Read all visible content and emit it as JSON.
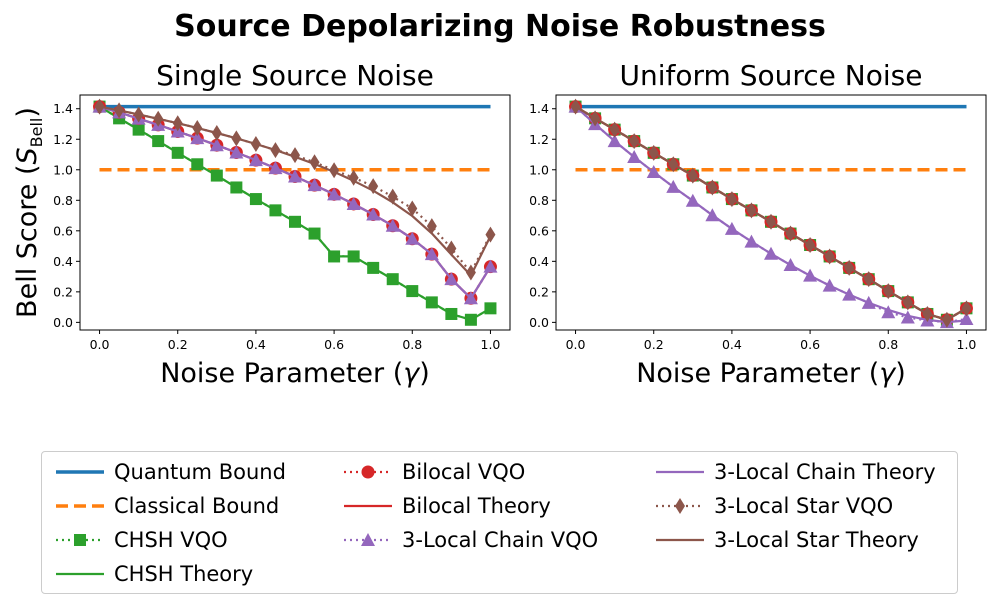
{
  "figure": {
    "suptitle": "Source Depolarizing Noise Robustness"
  },
  "colors": {
    "quantum_bound": "#1f77b4",
    "classical_bound": "#ff7f0e",
    "chsh": "#2ca02c",
    "bilocal": "#d62728",
    "chain": "#9467bd",
    "star": "#8c564b"
  },
  "legend": {
    "items": [
      {
        "key": "quantum_bound",
        "label": "Quantum Bound",
        "style": "solid-thick",
        "marker": "none"
      },
      {
        "key": "classical_bound",
        "label": "Classical Bound",
        "style": "dashed",
        "marker": "none"
      },
      {
        "key": "chsh",
        "label": "CHSH VQO",
        "style": "dotted",
        "marker": "square"
      },
      {
        "key": "chsh",
        "label": "CHSH Theory",
        "style": "solid",
        "marker": "none"
      },
      {
        "key": "bilocal",
        "label": "Bilocal VQO",
        "style": "dotted",
        "marker": "circle"
      },
      {
        "key": "bilocal",
        "label": "Bilocal Theory",
        "style": "solid",
        "marker": "none"
      },
      {
        "key": "chain",
        "label": "3-Local Chain VQO",
        "style": "dotted",
        "marker": "triangle"
      },
      {
        "key": "chain",
        "label": "3-Local Chain Theory",
        "style": "solid",
        "marker": "none"
      },
      {
        "key": "star",
        "label": "3-Local Star VQO",
        "style": "dotted",
        "marker": "diamond"
      },
      {
        "key": "star",
        "label": "3-Local Star Theory",
        "style": "solid",
        "marker": "none"
      }
    ]
  },
  "chart_data": [
    {
      "type": "line",
      "title": "Single Source Noise",
      "xlabel": "Noise Parameter ($\\gamma$)",
      "ylabel": "Bell Score ($S_{\\mathrm{Bell}}$)",
      "xlim": [
        -0.05,
        1.05
      ],
      "ylim": [
        -0.05,
        1.49
      ],
      "xticks": [
        "0.0",
        "0.2",
        "0.4",
        "0.6",
        "0.8",
        "1.0"
      ],
      "yticks": [
        "0.0",
        "0.2",
        "0.4",
        "0.6",
        "0.8",
        "1.0",
        "1.2",
        "1.4"
      ],
      "grid": false,
      "x": [
        0.0,
        0.05,
        0.1,
        0.15,
        0.2,
        0.25,
        0.3,
        0.35,
        0.4,
        0.45,
        0.5,
        0.55,
        0.6,
        0.65,
        0.7,
        0.75,
        0.8,
        0.85,
        0.9,
        0.95,
        1.0
      ],
      "series": [
        {
          "name": "Quantum Bound",
          "key": "quantum_bound",
          "style": "solid-thick",
          "marker": "none",
          "values": [
            1.414,
            1.414,
            1.414,
            1.414,
            1.414,
            1.414,
            1.414,
            1.414,
            1.414,
            1.414,
            1.414,
            1.414,
            1.414,
            1.414,
            1.414,
            1.414,
            1.414,
            1.414,
            1.414,
            1.414,
            1.414
          ]
        },
        {
          "name": "Classical Bound",
          "key": "classical_bound",
          "style": "dashed",
          "marker": "none",
          "values": [
            1.0,
            1.0,
            1.0,
            1.0,
            1.0,
            1.0,
            1.0,
            1.0,
            1.0,
            1.0,
            1.0,
            1.0,
            1.0,
            1.0,
            1.0,
            1.0,
            1.0,
            1.0,
            1.0,
            1.0,
            1.0
          ]
        },
        {
          "name": "CHSH Theory",
          "key": "chsh",
          "style": "solid",
          "marker": "none",
          "values": [
            1.414,
            1.337,
            1.263,
            1.188,
            1.111,
            1.036,
            0.962,
            0.884,
            0.808,
            0.734,
            0.659,
            0.582,
            0.432,
            0.432,
            0.357,
            0.283,
            0.205,
            0.131,
            0.055,
            0.017,
            0.092
          ]
        },
        {
          "name": "CHSH VQO",
          "key": "chsh",
          "style": "dotted",
          "marker": "square",
          "values": [
            1.414,
            1.337,
            1.263,
            1.188,
            1.111,
            1.036,
            0.962,
            0.884,
            0.808,
            0.734,
            0.659,
            0.582,
            0.432,
            0.432,
            0.357,
            0.283,
            0.205,
            0.131,
            0.055,
            0.017,
            0.092
          ]
        },
        {
          "name": "Bilocal Theory",
          "key": "bilocal",
          "style": "solid",
          "marker": "none",
          "values": [
            1.414,
            1.376,
            1.335,
            1.294,
            1.251,
            1.207,
            1.161,
            1.113,
            1.063,
            1.011,
            0.956,
            0.899,
            0.839,
            0.776,
            0.707,
            0.633,
            0.548,
            0.447,
            0.283,
            0.158,
            0.365
          ]
        },
        {
          "name": "Bilocal VQO",
          "key": "bilocal",
          "style": "dotted",
          "marker": "circle",
          "values": [
            1.414,
            1.376,
            1.335,
            1.294,
            1.251,
            1.207,
            1.161,
            1.113,
            1.063,
            1.011,
            0.956,
            0.899,
            0.839,
            0.776,
            0.707,
            0.633,
            0.548,
            0.447,
            0.283,
            0.158,
            0.365
          ]
        },
        {
          "name": "3-Local Chain Theory",
          "key": "chain",
          "style": "solid",
          "marker": "none",
          "values": [
            1.414,
            1.376,
            1.335,
            1.294,
            1.251,
            1.207,
            1.161,
            1.113,
            1.063,
            1.011,
            0.956,
            0.899,
            0.839,
            0.776,
            0.707,
            0.633,
            0.548,
            0.447,
            0.283,
            0.158,
            0.365
          ]
        },
        {
          "name": "3-Local Chain VQO",
          "key": "chain",
          "style": "dotted",
          "marker": "triangle",
          "values": [
            1.414,
            1.376,
            1.335,
            1.294,
            1.251,
            1.207,
            1.161,
            1.113,
            1.063,
            1.011,
            0.956,
            0.899,
            0.839,
            0.776,
            0.707,
            0.633,
            0.548,
            0.447,
            0.283,
            0.158,
            0.365
          ]
        },
        {
          "name": "3-Local Star Theory",
          "key": "star",
          "style": "solid",
          "marker": "none",
          "values": [
            1.414,
            1.389,
            1.362,
            1.334,
            1.305,
            1.274,
            1.241,
            1.206,
            1.169,
            1.129,
            1.085,
            1.038,
            0.986,
            0.928,
            0.863,
            0.787,
            0.697,
            0.583,
            0.444,
            0.307,
            0.566
          ]
        },
        {
          "name": "3-Local Star VQO",
          "key": "star",
          "style": "dotted",
          "marker": "diamond",
          "values": [
            1.414,
            1.389,
            1.362,
            1.334,
            1.305,
            1.274,
            1.241,
            1.206,
            1.169,
            1.129,
            1.096,
            1.049,
            0.997,
            0.948,
            0.893,
            0.824,
            0.746,
            0.631,
            0.484,
            0.327,
            0.575
          ]
        }
      ]
    },
    {
      "type": "line",
      "title": "Uniform Source Noise",
      "xlabel": "Noise Parameter ($\\gamma$)",
      "ylabel": "",
      "xlim": [
        -0.05,
        1.05
      ],
      "ylim": [
        -0.05,
        1.49
      ],
      "xticks": [
        "0.0",
        "0.2",
        "0.4",
        "0.6",
        "0.8",
        "1.0"
      ],
      "yticks": [
        "0.0",
        "0.2",
        "0.4",
        "0.6",
        "0.8",
        "1.0",
        "1.2",
        "1.4"
      ],
      "grid": false,
      "x": [
        0.0,
        0.05,
        0.1,
        0.15,
        0.2,
        0.25,
        0.3,
        0.35,
        0.4,
        0.45,
        0.5,
        0.55,
        0.6,
        0.65,
        0.7,
        0.75,
        0.8,
        0.85,
        0.9,
        0.95,
        1.0
      ],
      "series": [
        {
          "name": "Quantum Bound",
          "key": "quantum_bound",
          "style": "solid-thick",
          "marker": "none",
          "values": [
            1.414,
            1.414,
            1.414,
            1.414,
            1.414,
            1.414,
            1.414,
            1.414,
            1.414,
            1.414,
            1.414,
            1.414,
            1.414,
            1.414,
            1.414,
            1.414,
            1.414,
            1.414,
            1.414,
            1.414,
            1.414
          ]
        },
        {
          "name": "Classical Bound",
          "key": "classical_bound",
          "style": "dashed",
          "marker": "none",
          "values": [
            1.0,
            1.0,
            1.0,
            1.0,
            1.0,
            1.0,
            1.0,
            1.0,
            1.0,
            1.0,
            1.0,
            1.0,
            1.0,
            1.0,
            1.0,
            1.0,
            1.0,
            1.0,
            1.0,
            1.0,
            1.0
          ]
        },
        {
          "name": "CHSH Theory",
          "key": "chsh",
          "style": "solid",
          "marker": "none",
          "values": [
            1.414,
            1.337,
            1.263,
            1.188,
            1.111,
            1.036,
            0.962,
            0.884,
            0.808,
            0.734,
            0.659,
            0.582,
            0.507,
            0.432,
            0.357,
            0.283,
            0.205,
            0.131,
            0.055,
            0.017,
            0.092
          ]
        },
        {
          "name": "CHSH VQO",
          "key": "chsh",
          "style": "dotted",
          "marker": "square",
          "values": [
            1.414,
            1.337,
            1.263,
            1.188,
            1.111,
            1.036,
            0.962,
            0.884,
            0.808,
            0.734,
            0.659,
            0.582,
            0.507,
            0.432,
            0.357,
            0.283,
            0.205,
            0.131,
            0.055,
            0.017,
            0.092
          ]
        },
        {
          "name": "Bilocal Theory",
          "key": "bilocal",
          "style": "solid",
          "marker": "none",
          "values": [
            1.414,
            1.337,
            1.263,
            1.188,
            1.111,
            1.036,
            0.962,
            0.884,
            0.808,
            0.734,
            0.659,
            0.582,
            0.507,
            0.432,
            0.357,
            0.283,
            0.205,
            0.131,
            0.055,
            0.017,
            0.092
          ]
        },
        {
          "name": "Bilocal VQO",
          "key": "bilocal",
          "style": "dotted",
          "marker": "circle",
          "values": [
            1.414,
            1.337,
            1.263,
            1.188,
            1.111,
            1.036,
            0.962,
            0.884,
            0.808,
            0.734,
            0.659,
            0.582,
            0.507,
            0.432,
            0.357,
            0.283,
            0.205,
            0.131,
            0.055,
            0.017,
            0.092
          ]
        },
        {
          "name": "3-Local Chain Theory",
          "key": "chain",
          "style": "solid",
          "marker": "none",
          "values": [
            1.414,
            1.299,
            1.188,
            1.084,
            0.985,
            0.888,
            0.797,
            0.702,
            0.613,
            0.529,
            0.45,
            0.376,
            0.306,
            0.241,
            0.182,
            0.128,
            0.081,
            0.043,
            0.016,
            0.002,
            0.012
          ]
        },
        {
          "name": "3-Local Chain VQO",
          "key": "chain",
          "style": "dotted",
          "marker": "triangle",
          "values": [
            1.414,
            1.299,
            1.188,
            1.084,
            0.985,
            0.888,
            0.797,
            0.702,
            0.613,
            0.529,
            0.45,
            0.376,
            0.306,
            0.241,
            0.182,
            0.128,
            0.066,
            0.032,
            0.012,
            0.002,
            0.022
          ]
        },
        {
          "name": "3-Local Star Theory",
          "key": "star",
          "style": "solid",
          "marker": "none",
          "values": [
            1.414,
            1.337,
            1.263,
            1.188,
            1.111,
            1.036,
            0.962,
            0.884,
            0.808,
            0.734,
            0.659,
            0.582,
            0.507,
            0.432,
            0.357,
            0.283,
            0.205,
            0.131,
            0.055,
            0.017,
            0.092
          ]
        },
        {
          "name": "3-Local Star VQO",
          "key": "star",
          "style": "dotted",
          "marker": "diamond",
          "values": [
            1.414,
            1.337,
            1.263,
            1.188,
            1.111,
            1.036,
            0.962,
            0.884,
            0.808,
            0.734,
            0.659,
            0.582,
            0.507,
            0.432,
            0.357,
            0.283,
            0.205,
            0.131,
            0.055,
            0.017,
            0.092
          ]
        }
      ]
    }
  ]
}
